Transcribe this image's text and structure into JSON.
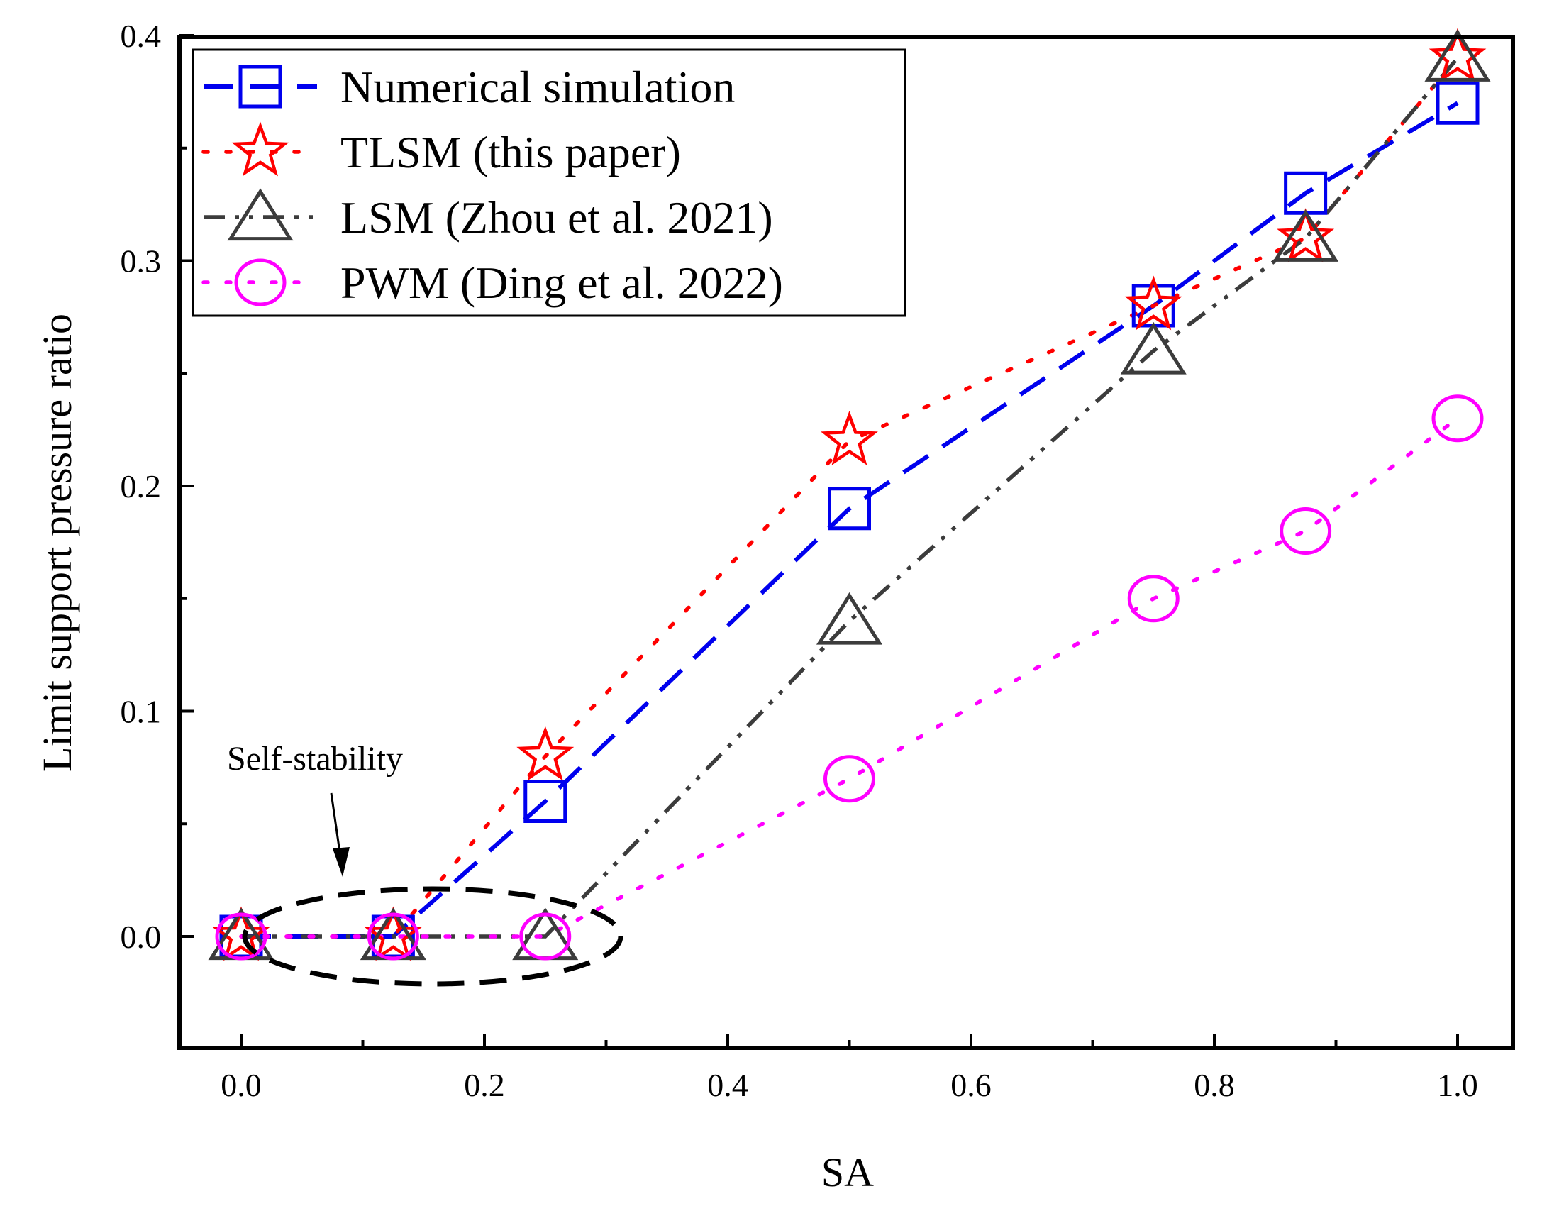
{
  "chart_data": {
    "type": "line",
    "title": "",
    "xlabel": "SA",
    "ylabel": "Limit support pressure ratio",
    "xlim": [
      -0.05,
      1.05
    ],
    "ylim": [
      -0.05,
      0.4
    ],
    "x_ticks": [
      "0.0",
      "0.2",
      "0.4",
      "0.6",
      "0.8",
      "1.0"
    ],
    "y_ticks": [
      "0.0",
      "0.1",
      "0.2",
      "0.3",
      "0.4"
    ],
    "grid": false,
    "legend_position": "top-left",
    "series": [
      {
        "name": "Numerical simulation",
        "color": "#0000ee",
        "marker": "square",
        "line_style": "dash",
        "x": [
          0.0,
          0.125,
          0.25,
          0.5,
          0.75,
          0.875,
          1.0
        ],
        "y": [
          0.0,
          0.0,
          0.06,
          0.19,
          0.28,
          0.33,
          0.37
        ]
      },
      {
        "name": "TLSM (this paper)",
        "color": "#ff0000",
        "marker": "star",
        "line_style": "dot",
        "x": [
          0.0,
          0.125,
          0.25,
          0.5,
          0.75,
          0.875,
          1.0
        ],
        "y": [
          0.0,
          0.0,
          0.08,
          0.22,
          0.28,
          0.31,
          0.39
        ]
      },
      {
        "name": "LSM (Zhou et al. 2021)",
        "color": "#3c3c3c",
        "marker": "triangle",
        "line_style": "dash-dot-dot",
        "x": [
          0.0,
          0.125,
          0.25,
          0.5,
          0.75,
          0.875,
          1.0
        ],
        "y": [
          0.0,
          0.0,
          0.0,
          0.14,
          0.26,
          0.31,
          0.39
        ]
      },
      {
        "name": "PWM (Ding et al.  2022)",
        "color": "#ff00ff",
        "marker": "circle",
        "line_style": "dot",
        "x": [
          0.0,
          0.125,
          0.25,
          0.5,
          0.75,
          0.875,
          1.0
        ],
        "y": [
          0.0,
          0.0,
          0.0,
          0.07,
          0.15,
          0.18,
          0.23
        ]
      }
    ],
    "annotations": [
      {
        "text": "Self-stability",
        "points_to": "dashed ellipse around SA 0.0–0.25 at ratio 0.0"
      }
    ]
  }
}
